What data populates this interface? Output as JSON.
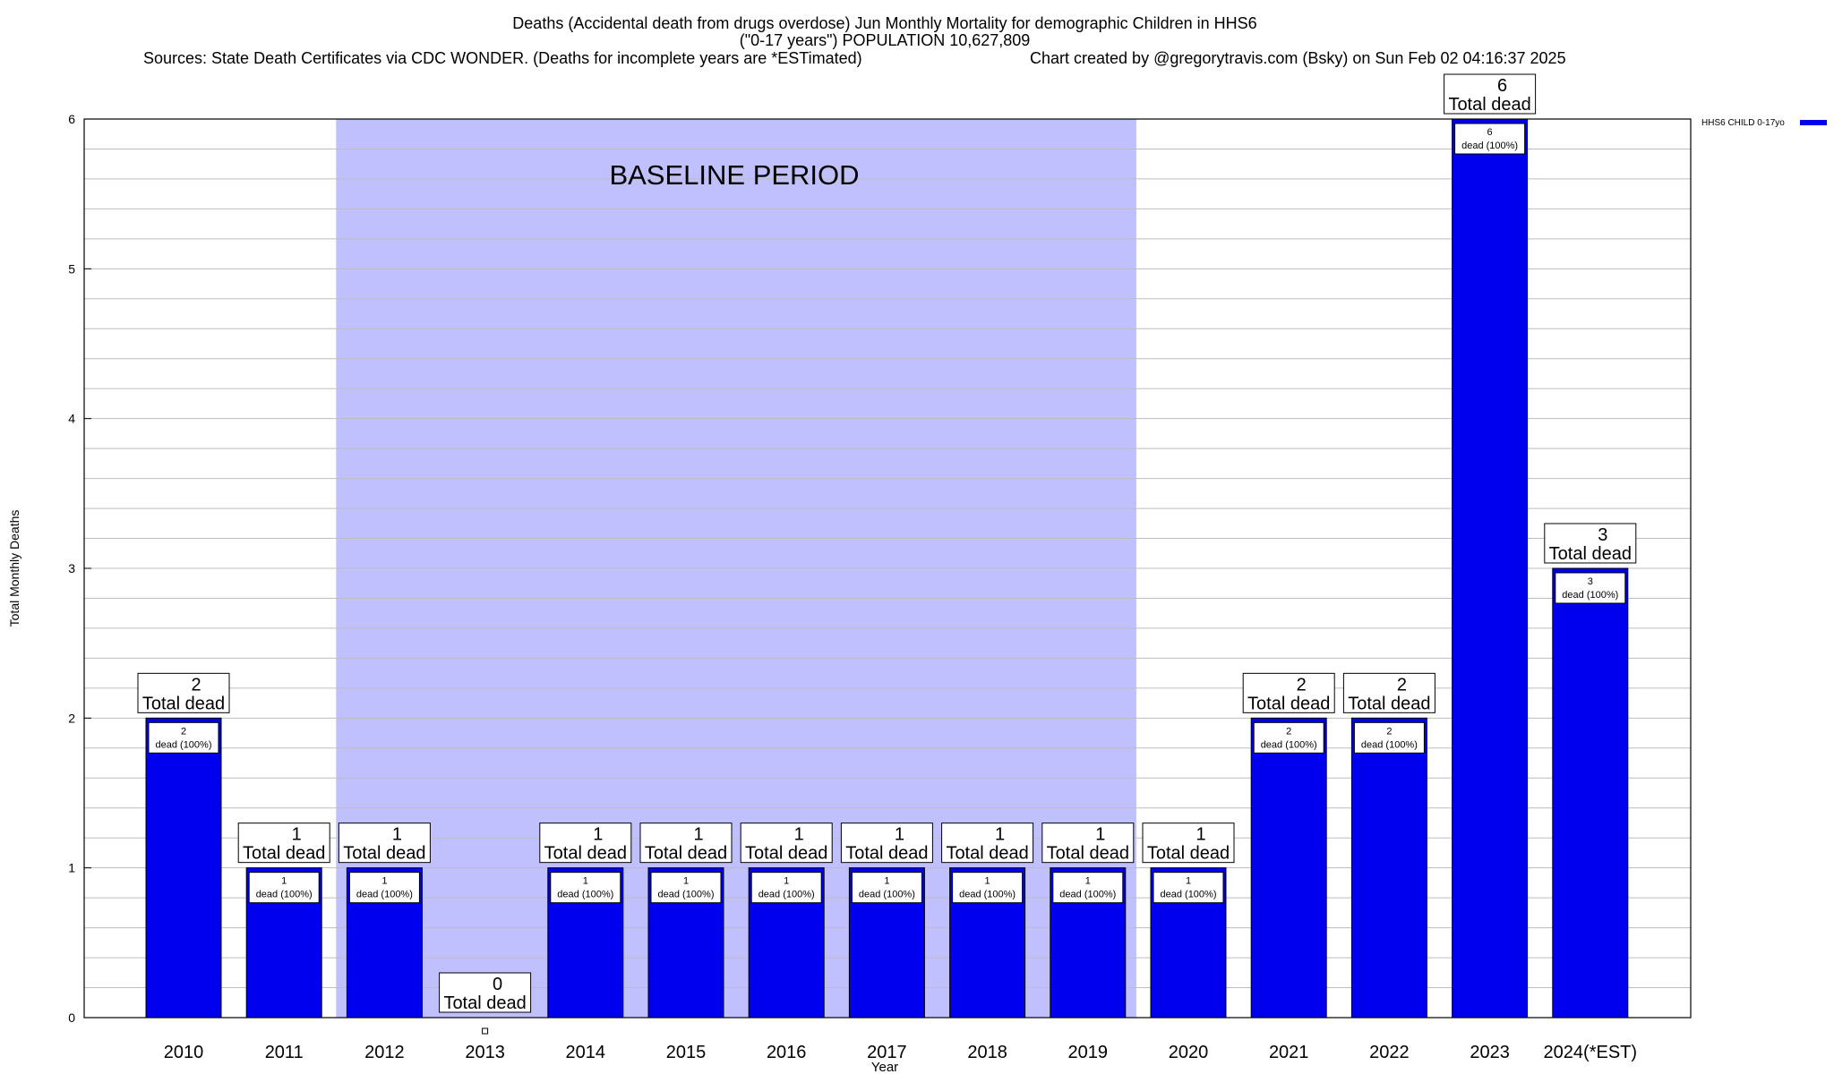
{
  "chart_data": {
    "type": "bar",
    "title_lines": [
      "Deaths (Accidental death from drugs overdose) Jun Monthly Mortality for demographic Children in HHS6",
      "(\"0-17 years\") POPULATION 10,627,809"
    ],
    "sources": "Sources: State Death Certificates via CDC WONDER. (Deaths for incomplete years are *ESTimated)",
    "credit": "Chart created by @gregorytravis.com (Bsky) on Sun Feb 02 04:16:37 2025",
    "xlabel": "Year",
    "ylabel": "Total Monthly Deaths",
    "ylim": [
      0,
      6
    ],
    "yticks": [
      0,
      1,
      2,
      3,
      4,
      5,
      6
    ],
    "categories": [
      "2010",
      "2011",
      "2012",
      "2013",
      "2014",
      "2015",
      "2016",
      "2017",
      "2018",
      "2019",
      "2020",
      "2021",
      "2022",
      "2023",
      "2024(*EST)"
    ],
    "series": [
      {
        "name": "HHS6 CHILD 0-17yo",
        "color": "#0000ee",
        "values": [
          2,
          1,
          1,
          0,
          1,
          1,
          1,
          1,
          1,
          1,
          1,
          2,
          2,
          6,
          3
        ]
      }
    ],
    "total_label_text": "Total dead",
    "inner_label_suffix": "dead (100%)",
    "baseline_period": {
      "label": "BASELINE PERIOD",
      "start_category": "2012",
      "end_category": "2019",
      "color": "#c0c0ff"
    },
    "grid": true,
    "legend_position": "top-right"
  }
}
